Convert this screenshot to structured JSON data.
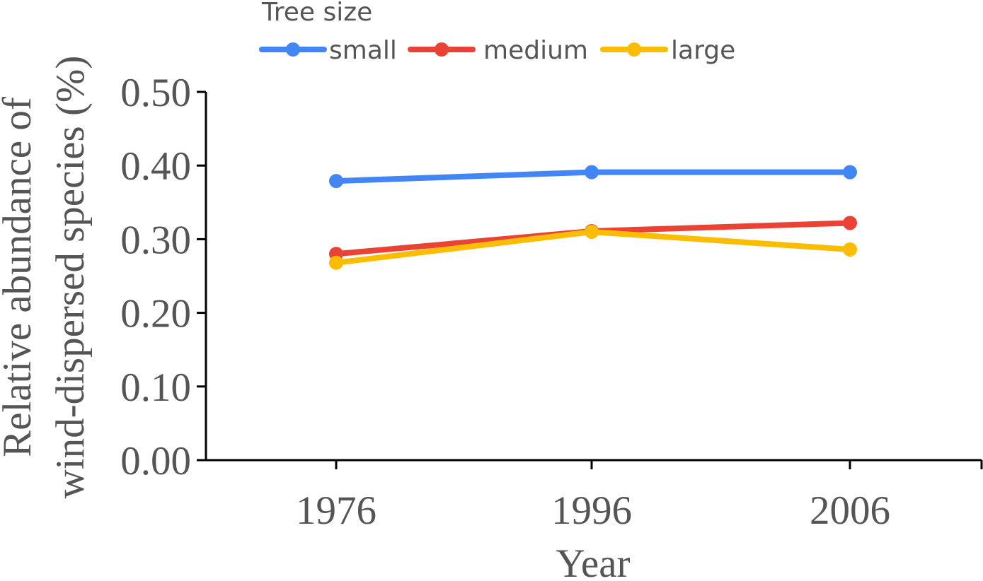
{
  "chart_data": {
    "type": "line",
    "x": [
      "1976",
      "1996",
      "2006"
    ],
    "series": [
      {
        "name": "small",
        "color": "#4285F4",
        "values": [
          0.379,
          0.391,
          0.391
        ]
      },
      {
        "name": "medium",
        "color": "#EA4335",
        "values": [
          0.28,
          0.311,
          0.322
        ]
      },
      {
        "name": "large",
        "color": "#FBBC04",
        "values": [
          0.268,
          0.31,
          0.286
        ]
      }
    ],
    "xlabel": "Year",
    "ylabel": [
      "Relative abundance of",
      "wind-dispersed species (%)"
    ],
    "ylim": [
      0,
      0.5
    ],
    "yticks": [
      "0.00",
      "0.10",
      "0.20",
      "0.30",
      "0.40",
      "0.50"
    ],
    "legend": {
      "title": "Tree size",
      "position": "top"
    },
    "grid": false
  }
}
